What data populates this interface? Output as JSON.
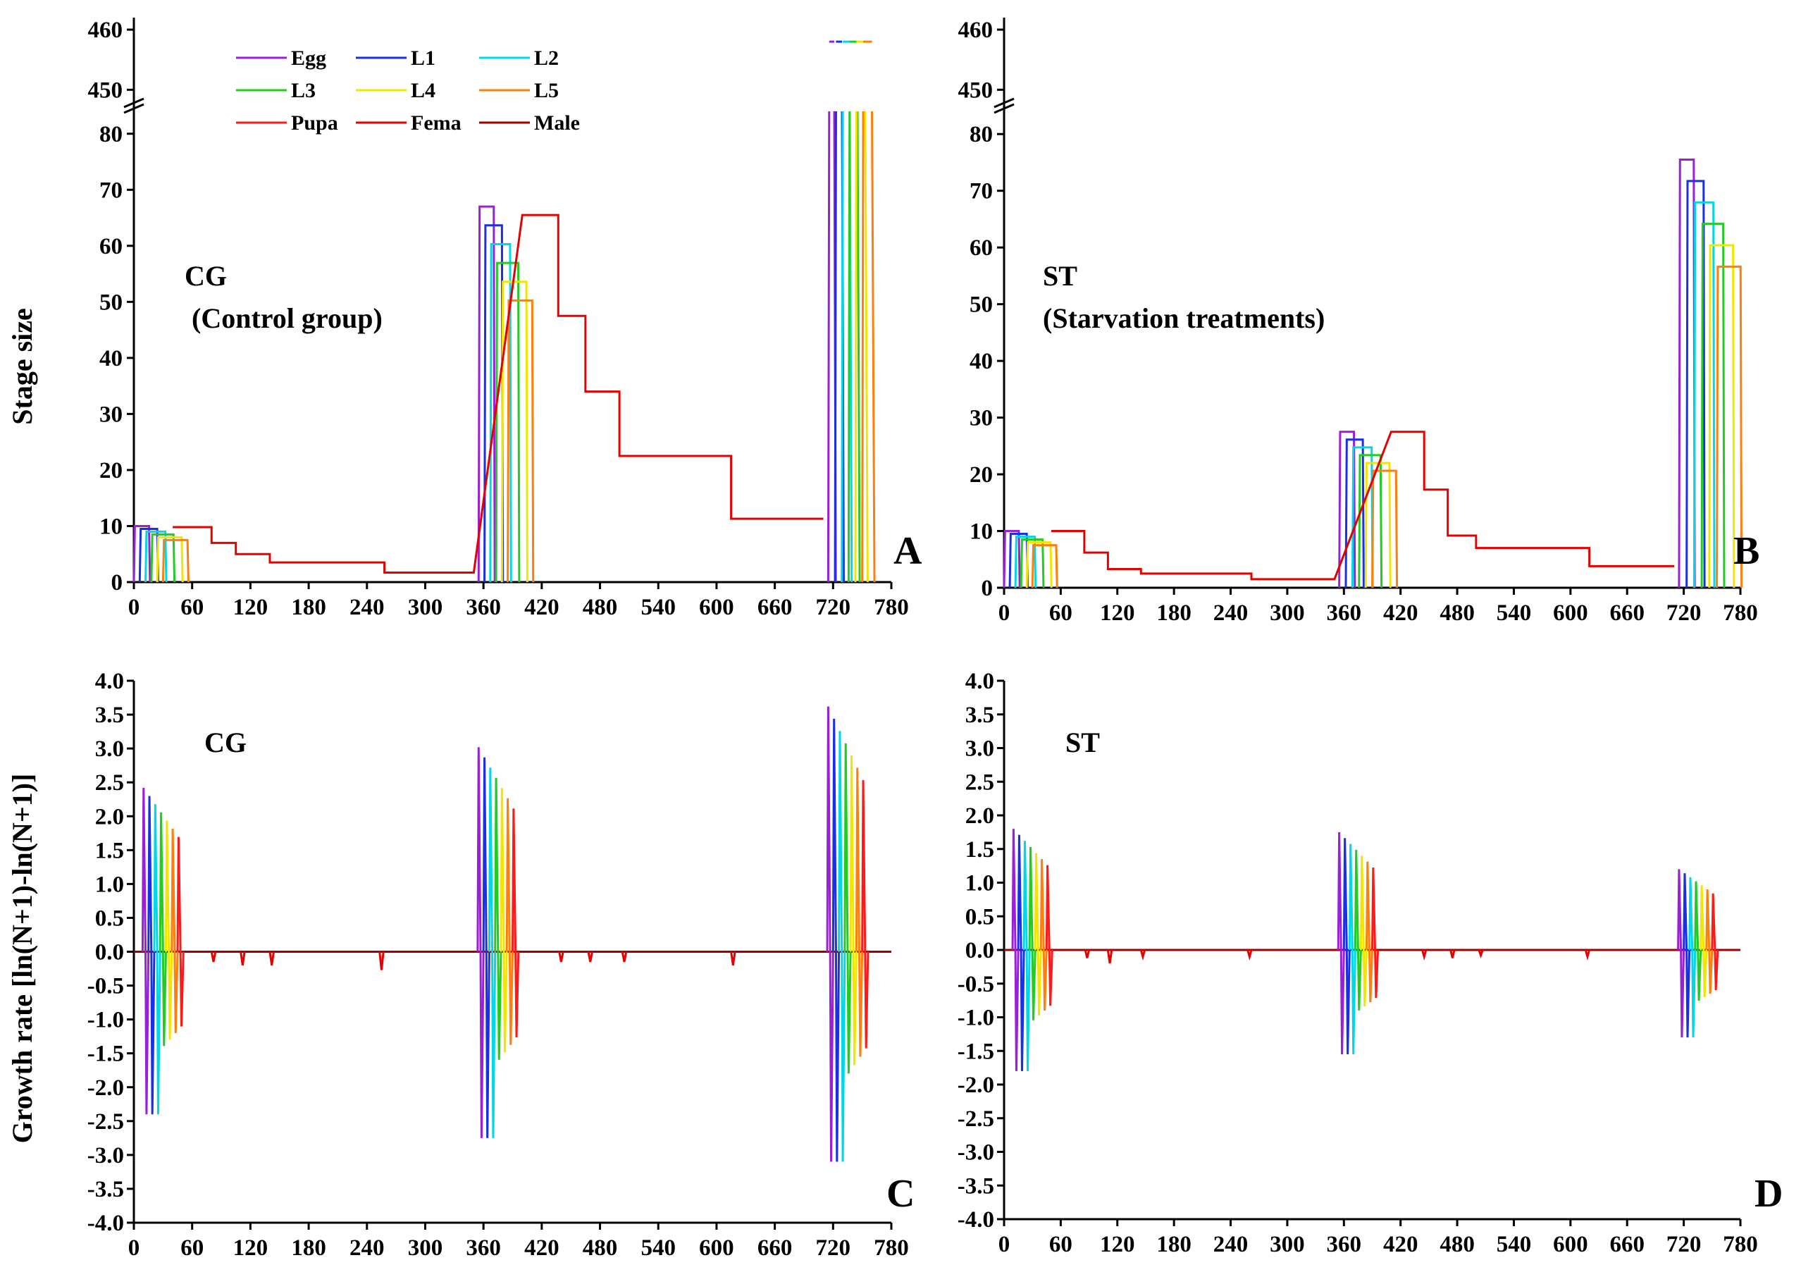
{
  "chart_data": {
    "x_ticks": [
      "0",
      "60",
      "120",
      "180",
      "240",
      "300",
      "360",
      "420",
      "480",
      "540",
      "600",
      "660",
      "720",
      "780"
    ],
    "xlim": [
      0,
      780
    ],
    "stage_size_y_ticks": [
      "0",
      "10",
      "20",
      "30",
      "40",
      "50",
      "60",
      "70",
      "80"
    ],
    "stage_size_break_ticks": [
      "450",
      "460"
    ],
    "stage_size_ylim": [
      0,
      85
    ],
    "stage_size_break_range": [
      445,
      462
    ],
    "growth_y_ticks": [
      "-4.0",
      "-3.5",
      "-3.0",
      "-2.5",
      "-2.0",
      "-1.5",
      "-1.0",
      "-0.5",
      "0.0",
      "0.5",
      "1.0",
      "1.5",
      "2.0",
      "2.5",
      "3.0",
      "3.5",
      "4.0"
    ],
    "growth_ylim": [
      -4.0,
      4.0
    ],
    "ylabel_top": "Stage size",
    "ylabel_bottom": "Growth rate [ln(N+1)-ln(N+1)]",
    "legend": [
      {
        "label": "Egg",
        "color": "#9b1fd6"
      },
      {
        "label": "L1",
        "color": "#1a2fe6"
      },
      {
        "label": "L2",
        "color": "#00d8e8"
      },
      {
        "label": "L3",
        "color": "#22cc22"
      },
      {
        "label": "L4",
        "color": "#f2e600"
      },
      {
        "label": "L5",
        "color": "#ff7f0e"
      },
      {
        "label": "Pupa",
        "color": "#ff1a1a"
      },
      {
        "label": "Fema",
        "color": "#e60000"
      },
      {
        "label": "Male",
        "color": "#a00000"
      }
    ],
    "panels": [
      {
        "type": "line",
        "letter": "A",
        "annotation_title": "CG",
        "annotation_sub": "(Control group)",
        "egg_stage_widths": [
          12,
          15,
          18,
          21,
          24
        ],
        "generations": [
          {
            "start": 0,
            "count": 10,
            "peak": 10,
            "step": 6
          },
          {
            "start": 355,
            "count": 67,
            "peak": 67,
            "step": 6
          },
          {
            "start": 715,
            "count": 458,
            "peak": 458,
            "step": 7
          }
        ],
        "female_decline": [
          {
            "x": 40,
            "y": 9.8
          },
          {
            "x": 80,
            "y": 9.8
          },
          {
            "x": 80,
            "y": 7
          },
          {
            "x": 105,
            "y": 7
          },
          {
            "x": 105,
            "y": 5
          },
          {
            "x": 140,
            "y": 5
          },
          {
            "x": 140,
            "y": 3.5
          },
          {
            "x": 258,
            "y": 3.5
          },
          {
            "x": 258,
            "y": 1.7
          },
          {
            "x": 350,
            "y": 1.7
          },
          {
            "x": 400,
            "y": 65.5
          },
          {
            "x": 437,
            "y": 65.5
          },
          {
            "x": 437,
            "y": 47.5
          },
          {
            "x": 465,
            "y": 47.5
          },
          {
            "x": 465,
            "y": 34
          },
          {
            "x": 500,
            "y": 34
          },
          {
            "x": 500,
            "y": 22.5
          },
          {
            "x": 615,
            "y": 22.5
          },
          {
            "x": 615,
            "y": 11.3
          },
          {
            "x": 710,
            "y": 11.3
          }
        ]
      },
      {
        "type": "line",
        "letter": "B",
        "annotation_title": "ST",
        "annotation_sub": "(Starvation treatments)",
        "egg_stage_widths": [
          12,
          15,
          18,
          21,
          24
        ],
        "generations": [
          {
            "start": 0,
            "count": 10,
            "peak": 10,
            "step": 6
          },
          {
            "start": 355,
            "count": 27.5,
            "peak": 27.5,
            "step": 7
          },
          {
            "start": 715,
            "count": 75.5,
            "peak": 75.5,
            "step": 8
          }
        ],
        "female_decline": [
          {
            "x": 50,
            "y": 10
          },
          {
            "x": 85,
            "y": 10
          },
          {
            "x": 85,
            "y": 6.2
          },
          {
            "x": 110,
            "y": 6.2
          },
          {
            "x": 110,
            "y": 3.3
          },
          {
            "x": 145,
            "y": 3.3
          },
          {
            "x": 145,
            "y": 2.5
          },
          {
            "x": 262,
            "y": 2.5
          },
          {
            "x": 262,
            "y": 1.5
          },
          {
            "x": 350,
            "y": 1.5
          },
          {
            "x": 410,
            "y": 27.5
          },
          {
            "x": 445,
            "y": 27.5
          },
          {
            "x": 445,
            "y": 17.3
          },
          {
            "x": 470,
            "y": 17.3
          },
          {
            "x": 470,
            "y": 9.2
          },
          {
            "x": 500,
            "y": 9.2
          },
          {
            "x": 500,
            "y": 7
          },
          {
            "x": 620,
            "y": 7
          },
          {
            "x": 620,
            "y": 3.8
          },
          {
            "x": 710,
            "y": 3.8
          }
        ]
      },
      {
        "type": "line",
        "letter": "C",
        "annotation_title": "CG",
        "spikes_positive": [
          2.42,
          3.02,
          3.62
        ],
        "spikes_negative": [
          -2.4,
          -2.75,
          -3.1
        ],
        "minor_dips": [
          {
            "x": 82,
            "y": -0.15
          },
          {
            "x": 112,
            "y": -0.2
          },
          {
            "x": 142,
            "y": -0.2
          },
          {
            "x": 255,
            "y": -0.27
          },
          {
            "x": 440,
            "y": -0.15
          },
          {
            "x": 470,
            "y": -0.15
          },
          {
            "x": 505,
            "y": -0.15
          },
          {
            "x": 617,
            "y": -0.2
          }
        ]
      },
      {
        "type": "line",
        "letter": "D",
        "annotation_title": "ST",
        "spikes_positive": [
          1.8,
          1.75,
          1.2
        ],
        "spikes_negative": [
          -1.8,
          -1.55,
          -1.3
        ],
        "minor_dips": [
          {
            "x": 88,
            "y": -0.12
          },
          {
            "x": 112,
            "y": -0.2
          },
          {
            "x": 147,
            "y": -0.1
          },
          {
            "x": 260,
            "y": -0.1
          },
          {
            "x": 445,
            "y": -0.1
          },
          {
            "x": 475,
            "y": -0.12
          },
          {
            "x": 505,
            "y": -0.08
          },
          {
            "x": 618,
            "y": -0.1
          }
        ]
      }
    ]
  }
}
